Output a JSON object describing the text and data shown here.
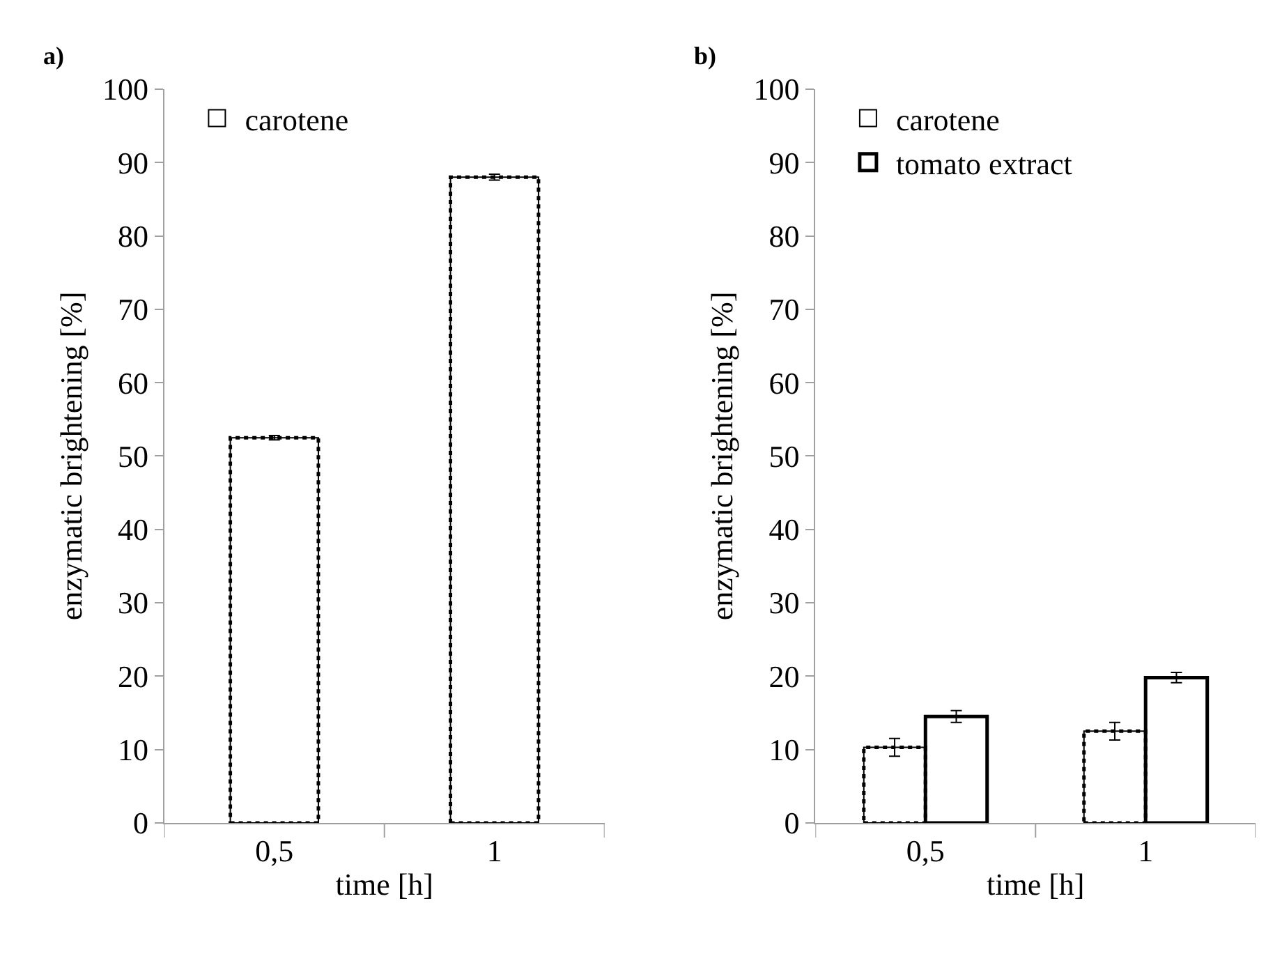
{
  "chart_data": [
    {
      "type": "bar",
      "title": "a)",
      "xlabel": "time [h]",
      "ylabel": "enzymatic brightening [%]",
      "categories": [
        "0,5",
        "1"
      ],
      "series": [
        {
          "name": "carotene",
          "color": "#ffffff",
          "line_style": "dotted",
          "values": [
            52.5,
            88
          ],
          "errors": [
            0.3,
            0.4
          ]
        }
      ],
      "ylim": [
        0,
        100
      ],
      "yticks": [
        0,
        10,
        20,
        30,
        40,
        50,
        60,
        70,
        80,
        90,
        100
      ],
      "legend": "top left"
    },
    {
      "type": "bar",
      "title": "b)",
      "xlabel": "time [h]",
      "ylabel": "enzymatic brightening [%]",
      "categories": [
        "0,5",
        "1"
      ],
      "series": [
        {
          "name": "carotene",
          "color": "#ffffff",
          "line_style": "dotted",
          "values": [
            10.3,
            12.5
          ],
          "errors": [
            1.2,
            1.2
          ]
        },
        {
          "name": "tomato extract",
          "color": "#ffffff",
          "line_style": "solid",
          "values": [
            14.5,
            19.8
          ],
          "errors": [
            0.8,
            0.7
          ]
        }
      ],
      "ylim": [
        0,
        100
      ],
      "yticks": [
        0,
        10,
        20,
        30,
        40,
        50,
        60,
        70,
        80,
        90,
        100
      ],
      "legend": "top left"
    }
  ]
}
